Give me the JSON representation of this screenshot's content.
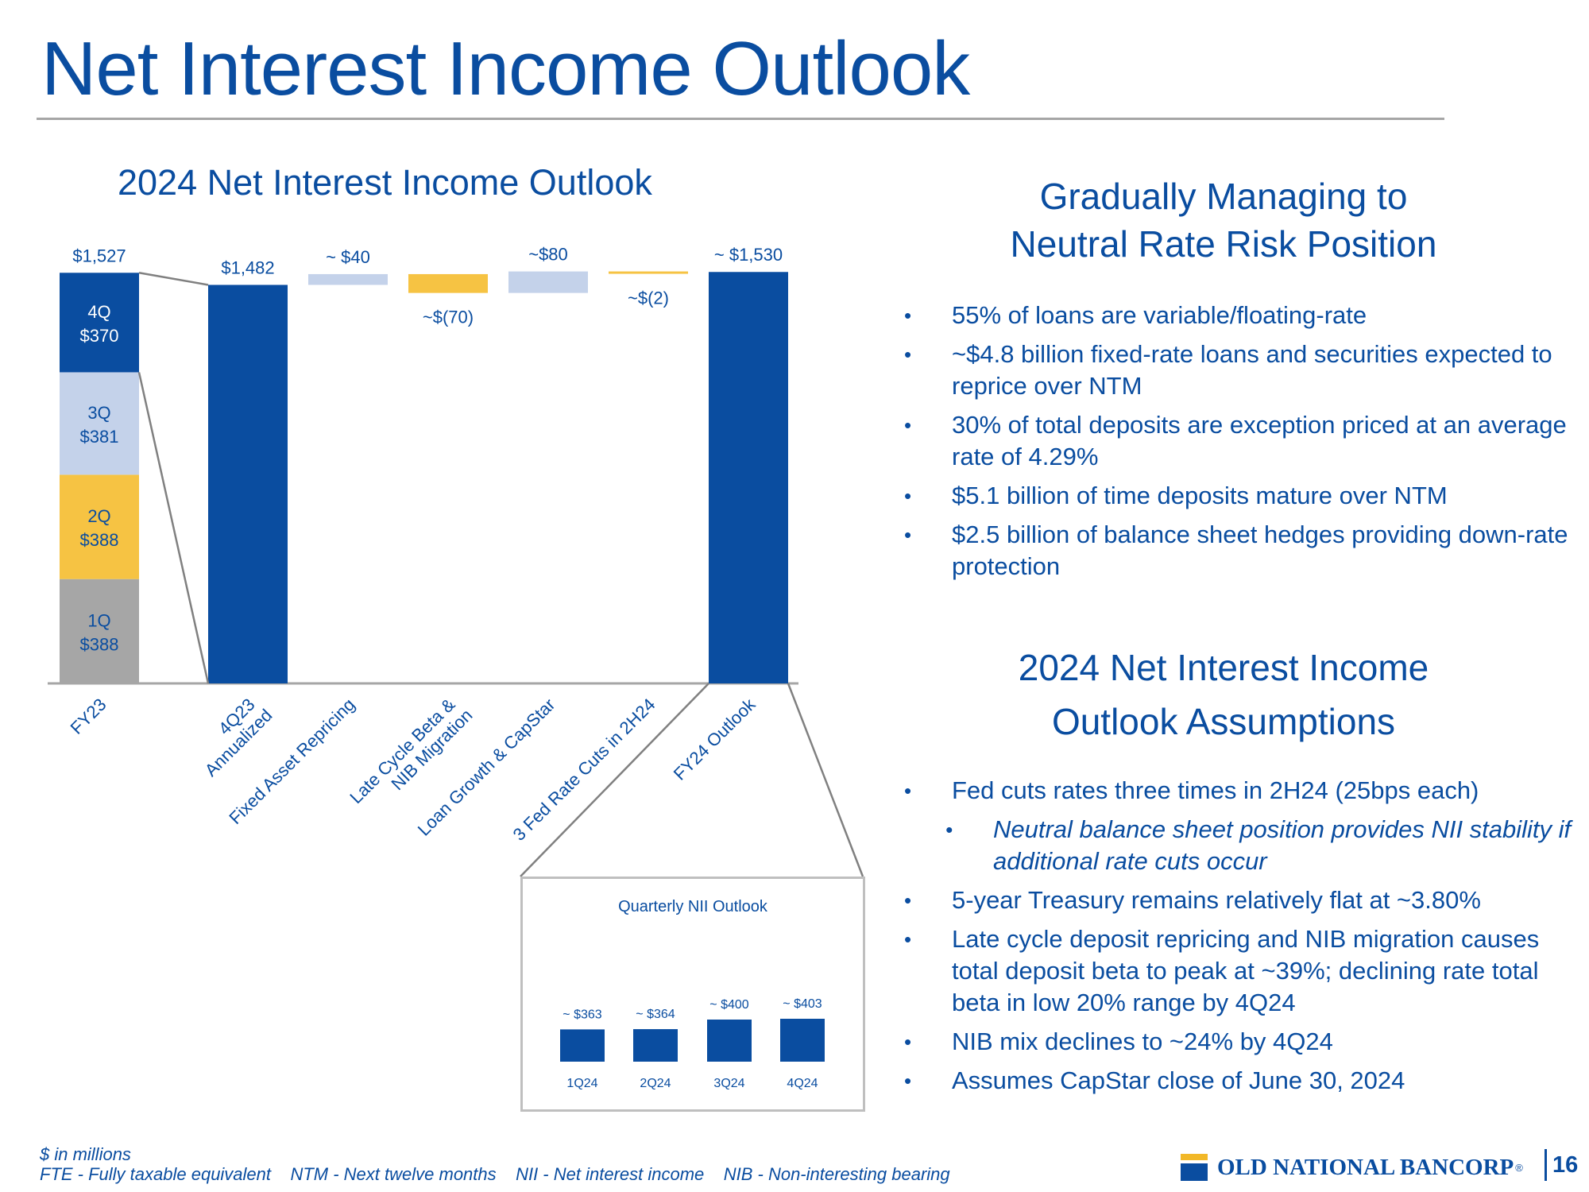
{
  "slide": {
    "title": "Net Interest Income Outlook",
    "page_number": "16",
    "brand": "OLD NATIONAL BANCORP",
    "brand_mark": "®"
  },
  "colors": {
    "navy": "#0a4da0",
    "light_blue": "#c4d2ea",
    "gold": "#f6c343",
    "gray": "#a6a6a6"
  },
  "chart_data": [
    {
      "type": "waterfall",
      "title": "2024 Net Interest Income Outlook",
      "categories": [
        "FY23",
        "4Q23 Annualized",
        "Fixed Asset Repricing",
        "Late Cycle Beta & NIB Migration",
        "Loan Growth & CapStar",
        "3 Fed Rate Cuts in 2H24",
        "FY24 Outlook"
      ],
      "category_lines": [
        [
          "FY23"
        ],
        [
          "4Q23",
          "Annualized"
        ],
        [
          "Fixed Asset Repricing"
        ],
        [
          "Late Cycle Beta &",
          "NIB Migration"
        ],
        [
          "Loan Growth & CapStar"
        ],
        [
          "3 Fed Rate Cuts in 2H24"
        ],
        [
          "FY24 Outlook"
        ]
      ],
      "stacked_fy23": [
        {
          "name": "1Q",
          "value": 388,
          "label": "$388",
          "color": "gray"
        },
        {
          "name": "2Q",
          "value": 388,
          "label": "$388",
          "color": "gold"
        },
        {
          "name": "3Q",
          "value": 381,
          "label": "$381",
          "color": "light_blue"
        },
        {
          "name": "4Q",
          "value": 370,
          "label": "$370",
          "color": "navy"
        }
      ],
      "bars": [
        {
          "category": "FY23",
          "kind": "total",
          "value": 1527,
          "label": "$1,527"
        },
        {
          "category": "4Q23 Annualized",
          "kind": "total",
          "value": 1482,
          "label": "$1,482"
        },
        {
          "category": "Fixed Asset Repricing",
          "kind": "delta",
          "value": 40,
          "label": "~ $40"
        },
        {
          "category": "Late Cycle Beta & NIB Migration",
          "kind": "delta",
          "value": -70,
          "label": "~$(70)"
        },
        {
          "category": "Loan Growth & CapStar",
          "kind": "delta",
          "value": 80,
          "label": "~$80"
        },
        {
          "category": "3 Fed Rate Cuts in 2H24",
          "kind": "delta",
          "value": -2,
          "label": "~$(2)"
        },
        {
          "category": "FY24 Outlook",
          "kind": "total",
          "value": 1530,
          "label": "~ $1,530"
        }
      ],
      "unit": "$ in millions"
    },
    {
      "type": "bar",
      "title": "Quarterly NII Outlook",
      "categories": [
        "1Q24",
        "2Q24",
        "3Q24",
        "4Q24"
      ],
      "values": [
        363,
        364,
        400,
        403
      ],
      "labels": [
        "~ $363",
        "~ $364",
        "~ $400",
        "~ $403"
      ]
    }
  ],
  "right_panel": {
    "heading1_lines": [
      "Gradually Managing to",
      "Neutral Rate Risk Position"
    ],
    "bullets1": [
      "55% of loans are variable/floating-rate",
      "~$4.8 billion fixed-rate loans and securities expected to reprice over NTM",
      "30% of total deposits are exception priced at an average rate of 4.29%",
      "$5.1 billion of time deposits mature over NTM",
      "$2.5 billion of balance sheet hedges providing down-rate protection"
    ],
    "heading2_lines": [
      "2024 Net Interest Income",
      "Outlook Assumptions"
    ],
    "bullets2": [
      {
        "text": "Fed cuts rates three times in 2H24 (25bps each)",
        "sub": false
      },
      {
        "text": "Neutral balance sheet position provides NII stability if additional rate cuts occur",
        "sub": true
      },
      {
        "text": "5-year Treasury remains relatively flat at ~3.80%",
        "sub": false
      },
      {
        "text": "Late cycle deposit repricing and NIB migration causes total deposit beta to peak at ~39%; declining rate total beta in low 20% range by 4Q24",
        "sub": false
      },
      {
        "text": "NIB mix declines to ~24% by 4Q24",
        "sub": false
      },
      {
        "text": "Assumes CapStar close of June 30, 2024",
        "sub": false
      }
    ]
  },
  "footnotes": {
    "line1": "$ in millions",
    "line2": "FTE - Fully taxable equivalent    NTM - Next twelve months    NII - Net interest income    NIB - Non-interesting bearing"
  }
}
